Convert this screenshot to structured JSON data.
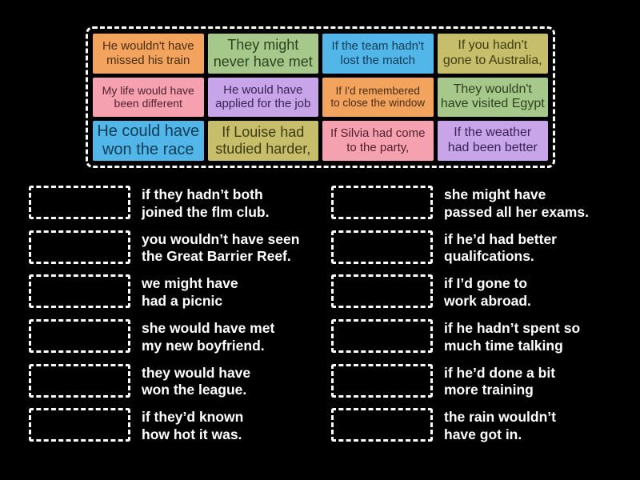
{
  "colors": {
    "background": "#000000",
    "dashed_border": "#ffffff",
    "answer_text": "#ffffff",
    "tile_orange": "#f2a45f",
    "tile_green": "#a6c98b",
    "tile_blue": "#52b7e8",
    "tile_olive": "#c6be6b",
    "tile_pink": "#f5a1af",
    "tile_purple": "#c7a5e8"
  },
  "board": {
    "tiles": [
      {
        "text": "He wouldn't have\nmissed his train",
        "bg": "#f2a45f",
        "fg": "#4b2d10"
      },
      {
        "text": "They might\nnever have met",
        "bg": "#a6c98b",
        "fg": "#2b421d"
      },
      {
        "text": "If the team hadn't\nlost the match",
        "bg": "#52b7e8",
        "fg": "#113c57"
      },
      {
        "text": "If you hadn't\ngone to Australia,",
        "bg": "#c6be6b",
        "fg": "#413d12"
      },
      {
        "text": "My life would have\nbeen different",
        "bg": "#f5a1af",
        "fg": "#511f2d"
      },
      {
        "text": "He would have\napplied for the job",
        "bg": "#c7a5e8",
        "fg": "#3a2159"
      },
      {
        "text": "If I'd remembered\nto close the window",
        "bg": "#f2a45f",
        "fg": "#4b2d10"
      },
      {
        "text": "They wouldn't\nhave visited Egypt",
        "bg": "#a6c98b",
        "fg": "#2b421d"
      },
      {
        "text": "He could have\nwon the race",
        "bg": "#52b7e8",
        "fg": "#113c57"
      },
      {
        "text": "If Louise had\nstudied harder,",
        "bg": "#c6be6b",
        "fg": "#413d12"
      },
      {
        "text": "If Silvia had come\nto the party,",
        "bg": "#f5a1af",
        "fg": "#511f2d"
      },
      {
        "text": "If the weather\nhad been better",
        "bg": "#c7a5e8",
        "fg": "#3a2159"
      }
    ]
  },
  "answers": {
    "left": [
      {
        "text": "if they hadn’t both\njoined the flm club."
      },
      {
        "text": "you wouldn’t have seen\nthe Great Barrier Reef."
      },
      {
        "text": "we might have\nhad a picnic"
      },
      {
        "text": "she would have met\nmy new boyfriend."
      },
      {
        "text": "they would have\nwon the league."
      },
      {
        "text": "if they’d known\nhow hot it was."
      }
    ],
    "right": [
      {
        "text": "she might have\npassed all her exams."
      },
      {
        "text": "if he’d had better\nqualifcations."
      },
      {
        "text": "if I’d gone to\nwork abroad."
      },
      {
        "text": "if he hadn’t spent so\nmuch time talking"
      },
      {
        "text": "if he’d done a bit\nmore training"
      },
      {
        "text": "the rain wouldn’t\nhave got in."
      }
    ]
  }
}
